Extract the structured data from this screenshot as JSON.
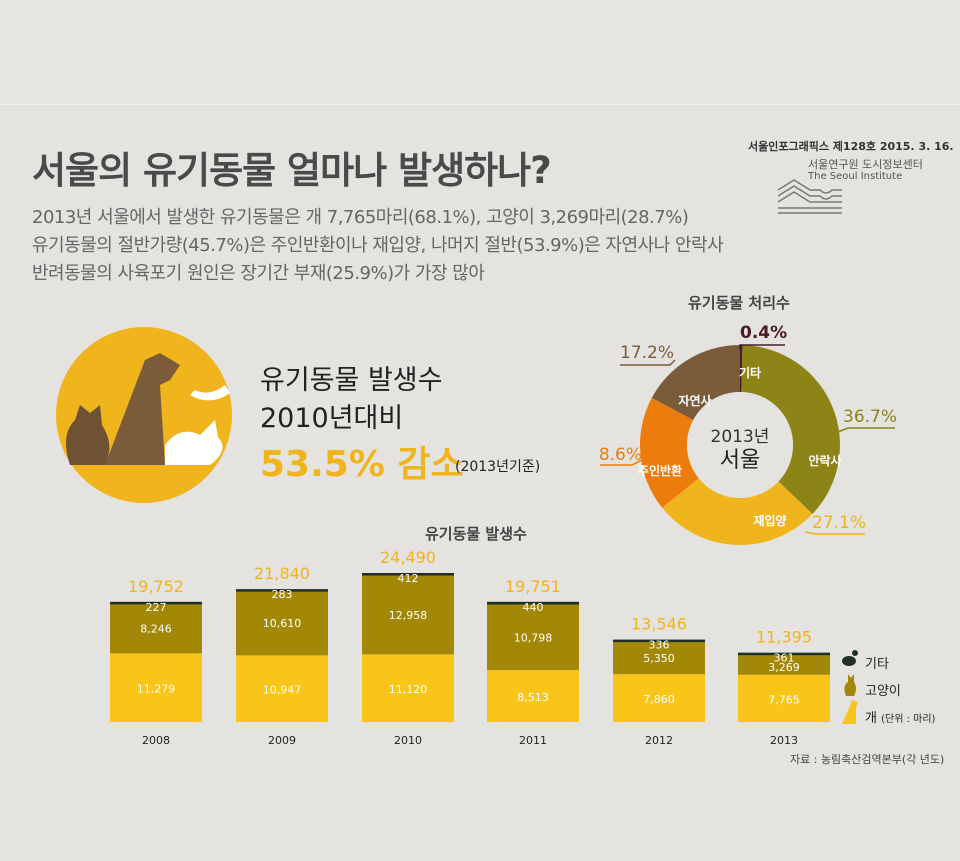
{
  "header": {
    "title": "서울의 유기동물 얼마나 발생하나?",
    "subtitles": [
      "2013년 서울에서 발생한 유기동물은 개 7,765마리(68.1%), 고양이 3,269마리(28.7%)",
      "유기동물의 절반가량(45.7%)은 주인반환이나 재입양, 나머지 절반(53.9%)은 자연사나 안락사",
      "반려동물의 사육포기 원인은 장기간 부재(25.9%)가 가장 많아"
    ],
    "series_info": "서울인포그래픽스 제128호 2015. 3. 16.",
    "institute_ko": "서울연구원 도시정보센터",
    "institute_en": "The Seoul Institute"
  },
  "hero": {
    "line1": "유기동물 발생수",
    "line2": "2010년대비",
    "pct": "53.5% 감소",
    "note": "(2013년기준)"
  },
  "colors": {
    "dog": "#f8c518",
    "cat": "#a38808",
    "other": "#1e2f28",
    "euthanasia": "#8c8417",
    "adoption": "#f0b41c",
    "returned": "#ec7d0c",
    "natural": "#7a5c3a",
    "etc": "#4a1a25",
    "circle": "#f0b41c"
  },
  "chart_data": [
    {
      "type": "pie",
      "title": "유기동물 처리수",
      "center_label": [
        "2013년",
        "서울"
      ],
      "slices": [
        {
          "name": "기타",
          "value": 0.4,
          "label": "0.4%"
        },
        {
          "name": "안락사",
          "value": 36.7,
          "label": "36.7%"
        },
        {
          "name": "재입양",
          "value": 27.1,
          "label": "27.1%"
        },
        {
          "name": "주인반환",
          "value": 18.6,
          "label": "18.6%"
        },
        {
          "name": "자연사",
          "value": 17.2,
          "label": "17.2%"
        }
      ]
    },
    {
      "type": "bar",
      "stacked": true,
      "title": "유기동물 발생수",
      "categories": [
        "2008",
        "2009",
        "2010",
        "2011",
        "2012",
        "2013"
      ],
      "series": [
        {
          "name": "개",
          "values": [
            11279,
            10947,
            11120,
            8513,
            7860,
            7765
          ],
          "labels": [
            "11,279",
            "10,947",
            "11,120",
            "8,513",
            "7,860",
            "7,765"
          ]
        },
        {
          "name": "고양이",
          "values": [
            8246,
            10610,
            12958,
            10798,
            5350,
            3269
          ],
          "labels": [
            "8,246",
            "10,610",
            "12,958",
            "10,798",
            "5,350",
            "3,269"
          ]
        },
        {
          "name": "기타",
          "values": [
            227,
            283,
            412,
            440,
            336,
            361
          ],
          "labels": [
            "227",
            "283",
            "412",
            "440",
            "336",
            "361"
          ]
        }
      ],
      "totals": [
        "19,752",
        "21,840",
        "24,490",
        "19,751",
        "13,546",
        "11,395"
      ],
      "unit_note": "(단위 : 마리)",
      "source": "자료 : 농림축산검역본부(각 년도)"
    }
  ]
}
